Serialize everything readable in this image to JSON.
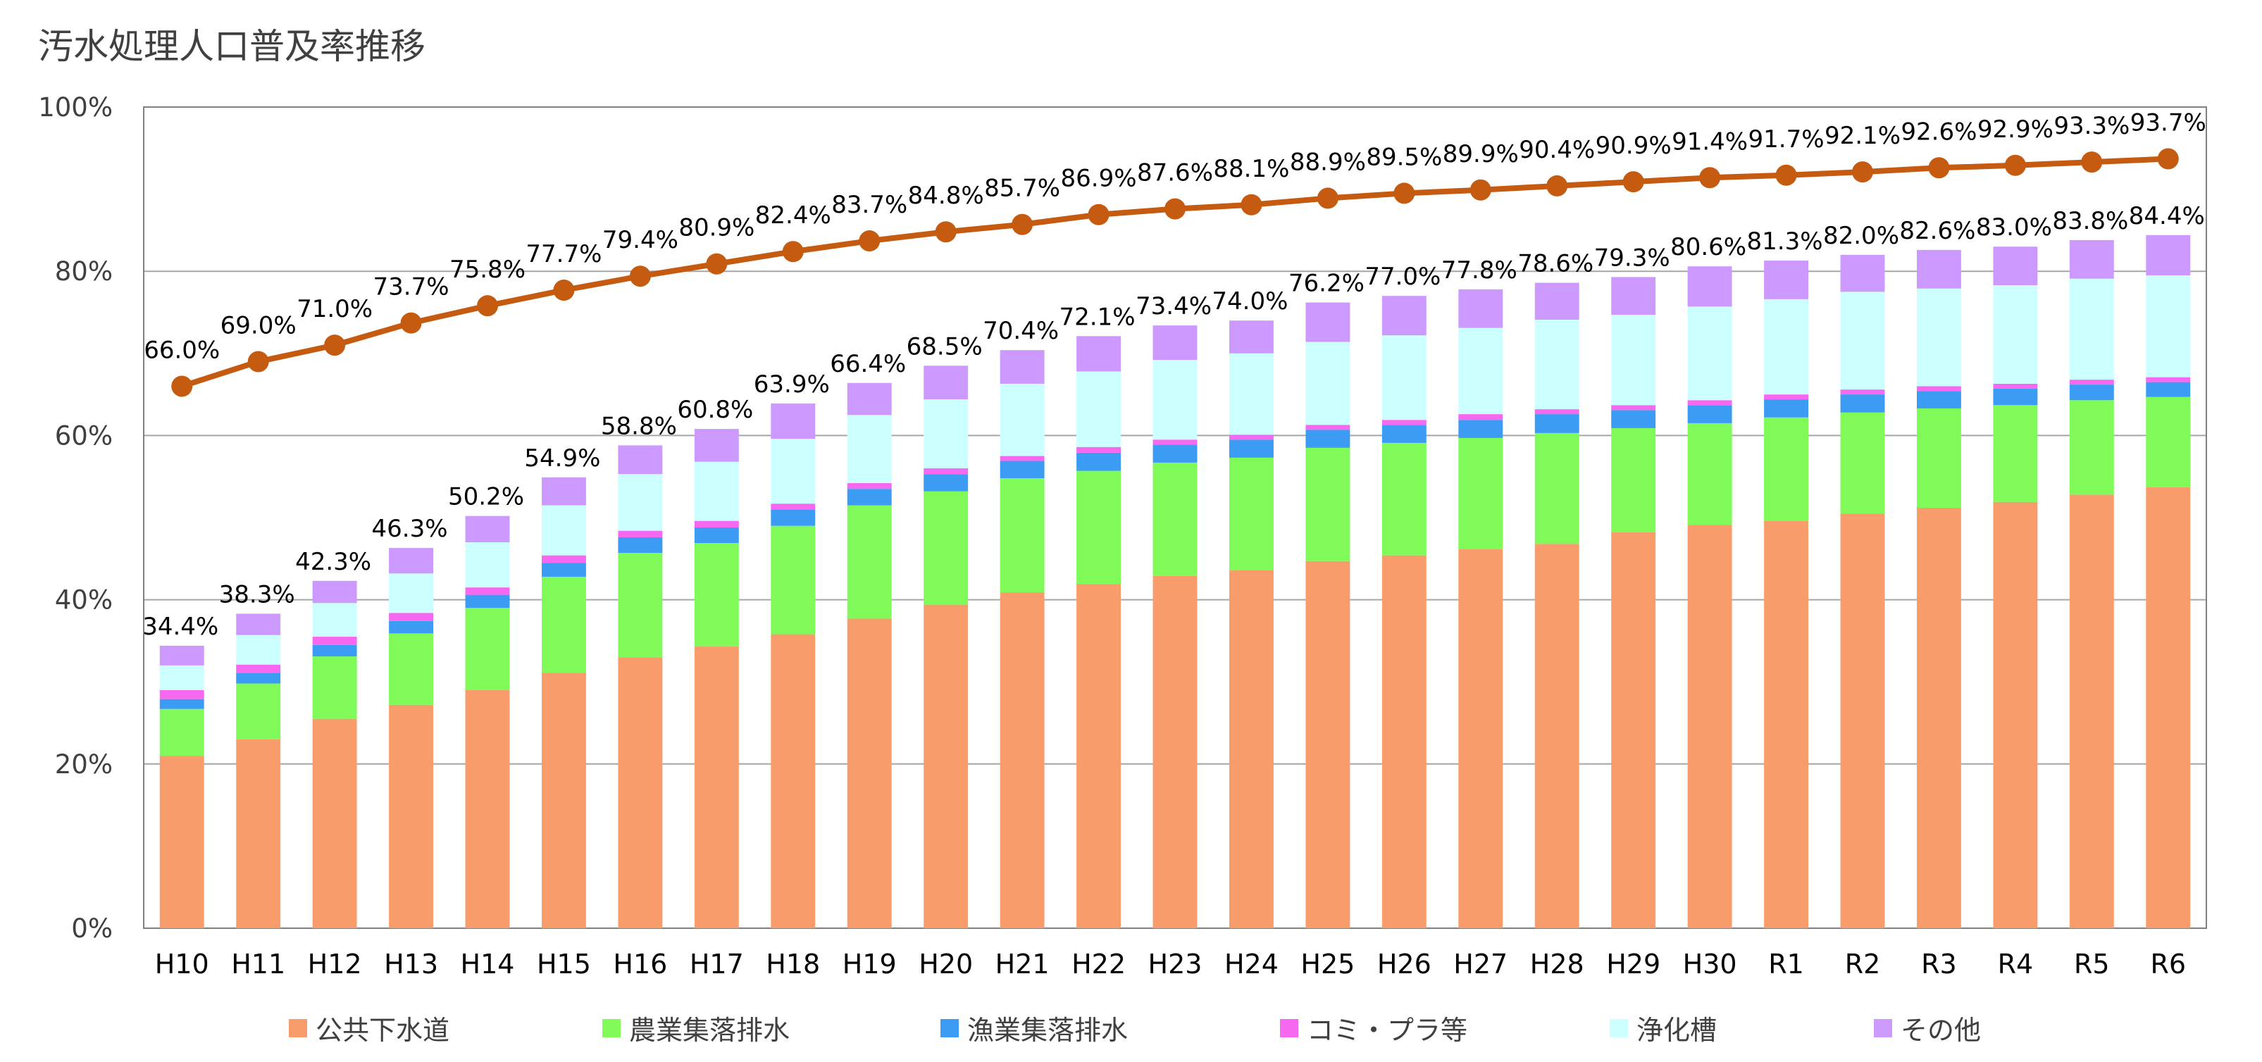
{
  "chart_data": {
    "type": "bar",
    "stacked": true,
    "title": "汚水処理人口普及率推移",
    "xlabel": "",
    "ylabel": "",
    "ylim": [
      0,
      100
    ],
    "yticks": [
      "0%",
      "20%",
      "40%",
      "60%",
      "80%",
      "100%"
    ],
    "categories": [
      "H10",
      "H11",
      "H12",
      "H13",
      "H14",
      "H15",
      "H16",
      "H17",
      "H18",
      "H19",
      "H20",
      "H21",
      "H22",
      "H23",
      "H24",
      "H25",
      "H26",
      "H27",
      "H28",
      "H29",
      "H30",
      "R1",
      "R2",
      "R3",
      "R4",
      "R5",
      "R6"
    ],
    "series": [
      {
        "name": "公共下水道",
        "color": "#F79C6A",
        "values": [
          21.0,
          23.0,
          25.5,
          27.2,
          29.0,
          31.1,
          33.0,
          34.3,
          35.8,
          37.7,
          39.4,
          40.9,
          41.9,
          42.9,
          43.6,
          44.7,
          45.4,
          46.2,
          46.8,
          48.2,
          49.1,
          49.6,
          50.5,
          51.2,
          51.9,
          52.8,
          53.7
        ]
      },
      {
        "name": "農業集落排水",
        "color": "#7FFA58",
        "values": [
          5.7,
          6.8,
          7.6,
          8.7,
          10.0,
          11.7,
          12.7,
          12.6,
          13.2,
          13.8,
          13.8,
          13.9,
          13.8,
          13.8,
          13.7,
          13.8,
          13.7,
          13.5,
          13.5,
          12.7,
          12.4,
          12.6,
          12.3,
          12.1,
          11.8,
          11.5,
          11.0
        ]
      },
      {
        "name": "漁業集落排水",
        "color": "#3C9BF2",
        "values": [
          1.2,
          1.3,
          1.4,
          1.5,
          1.6,
          1.7,
          1.9,
          1.9,
          2.0,
          2.0,
          2.1,
          2.1,
          2.2,
          2.2,
          2.2,
          2.2,
          2.2,
          2.2,
          2.3,
          2.2,
          2.2,
          2.2,
          2.2,
          2.1,
          2.0,
          1.9,
          1.8
        ]
      },
      {
        "name": "コミ・プラ等",
        "color": "#F768F0",
        "values": [
          1.1,
          1.0,
          1.0,
          1.0,
          0.9,
          0.9,
          0.8,
          0.8,
          0.7,
          0.7,
          0.7,
          0.6,
          0.7,
          0.6,
          0.6,
          0.6,
          0.6,
          0.7,
          0.6,
          0.6,
          0.6,
          0.6,
          0.6,
          0.6,
          0.6,
          0.6,
          0.6
        ]
      },
      {
        "name": "浄化槽",
        "color": "#CCFFFF",
        "values": [
          3.0,
          3.6,
          4.1,
          4.8,
          5.5,
          6.1,
          6.9,
          7.2,
          7.9,
          8.3,
          8.4,
          8.8,
          9.2,
          9.7,
          9.9,
          10.1,
          10.3,
          10.5,
          10.9,
          11.0,
          11.4,
          11.6,
          11.9,
          11.9,
          12.0,
          12.3,
          12.4
        ]
      },
      {
        "name": "その他",
        "color": "#CC99FF",
        "values": [
          2.4,
          2.6,
          2.7,
          3.1,
          3.2,
          3.4,
          3.5,
          4.0,
          4.3,
          3.9,
          4.1,
          4.1,
          4.3,
          4.2,
          4.0,
          4.8,
          4.8,
          4.7,
          4.5,
          4.6,
          4.9,
          4.7,
          4.5,
          4.7,
          4.7,
          4.7,
          4.9
        ]
      }
    ],
    "total_labels": [
      "34.4%",
      "38.3%",
      "42.3%",
      "46.3%",
      "50.2%",
      "54.9%",
      "58.8%",
      "60.8%",
      "63.9%",
      "66.4%",
      "68.5%",
      "70.4%",
      "72.1%",
      "73.4%",
      "74.0%",
      "76.2%",
      "77.0%",
      "77.8%",
      "78.6%",
      "79.3%",
      "80.6%",
      "81.3%",
      "82.0%",
      "82.6%",
      "83.0%",
      "83.8%",
      "84.4%"
    ],
    "line": {
      "name": "汚水処理人口普及率",
      "color": "#C55A11",
      "values": [
        66.0,
        69.0,
        71.0,
        73.7,
        75.8,
        77.7,
        79.4,
        80.9,
        82.4,
        83.7,
        84.8,
        85.7,
        86.9,
        87.6,
        88.1,
        88.9,
        89.5,
        89.9,
        90.4,
        90.9,
        91.4,
        91.7,
        92.1,
        92.6,
        92.9,
        93.3,
        93.7
      ],
      "labels": [
        "66.0%",
        "69.0%",
        "71.0%",
        "73.7%",
        "75.8%",
        "77.7%",
        "79.4%",
        "80.9%",
        "82.4%",
        "83.7%",
        "84.8%",
        "85.7%",
        "86.9%",
        "87.6%",
        "88.1%",
        "88.9%",
        "89.5%",
        "89.9%",
        "90.4%",
        "90.9%",
        "91.4%",
        "91.7%",
        "92.1%",
        "92.6%",
        "92.9%",
        "93.3%",
        "93.7%"
      ]
    },
    "grid": true,
    "legend_position": "bottom"
  }
}
